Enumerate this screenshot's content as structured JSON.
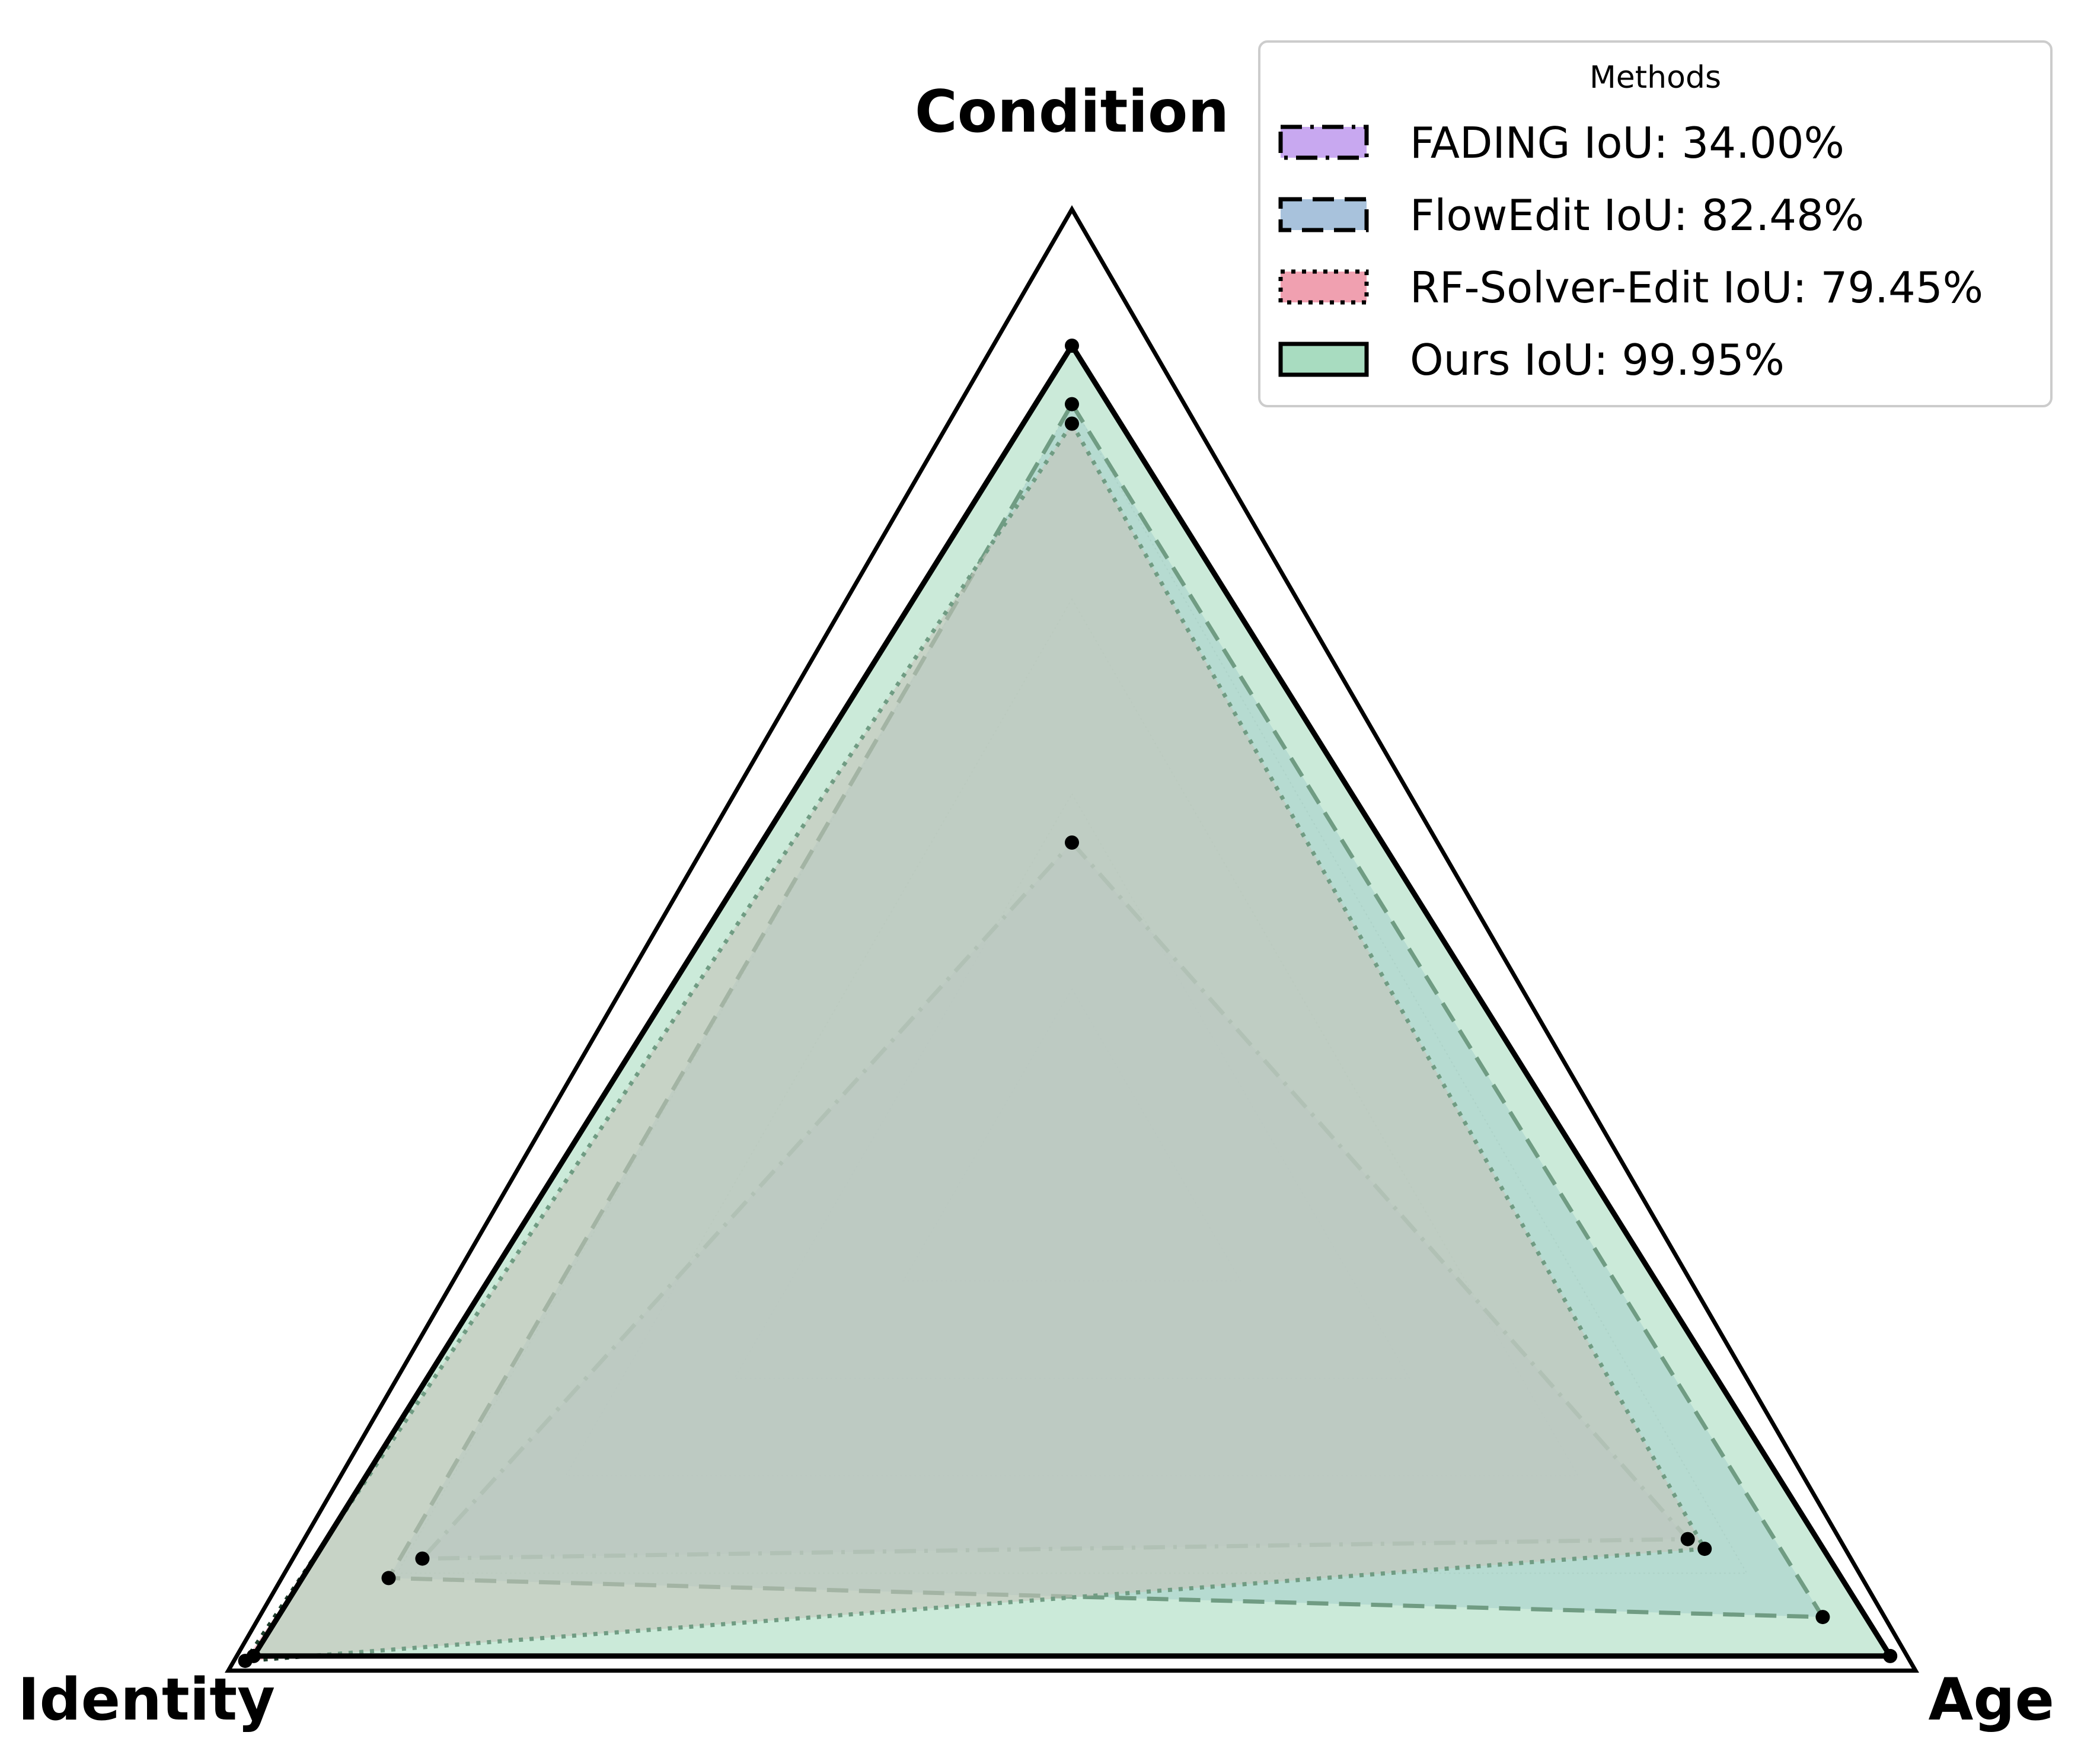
{
  "chart_data": {
    "type": "radar",
    "title": "",
    "axes": [
      "Condition",
      "Age",
      "Identity"
    ],
    "range": [
      0,
      1
    ],
    "grid": true,
    "legend": {
      "title": "Methods",
      "placement": "top-right"
    },
    "series": [
      {
        "name": "FADING",
        "label": "FADING IoU: 34.00%",
        "values": {
          "Condition": 0.35,
          "Age": 0.73,
          "Identity": 0.77
        },
        "fill": "#c8a8f0",
        "line_style": "dashdot"
      },
      {
        "name": "FlowEdit",
        "label": "FlowEdit IoU: 82.48%",
        "values": {
          "Condition": 0.8,
          "Age": 0.89,
          "Identity": 0.81
        },
        "fill": "#a8c2dc",
        "line_style": "dashed"
      },
      {
        "name": "RF-Solver-Edit",
        "label": "RF-Solver-Edit IoU: 79.45%",
        "values": {
          "Condition": 0.78,
          "Age": 0.75,
          "Identity": 0.98
        },
        "fill": "#f0a0b0",
        "line_style": "dotted"
      },
      {
        "name": "Ours",
        "label": "Ours IoU: 99.95%",
        "values": {
          "Condition": 0.86,
          "Age": 0.97,
          "Identity": 0.97
        },
        "fill": "#a8dcc0",
        "line_style": "solid"
      }
    ]
  }
}
